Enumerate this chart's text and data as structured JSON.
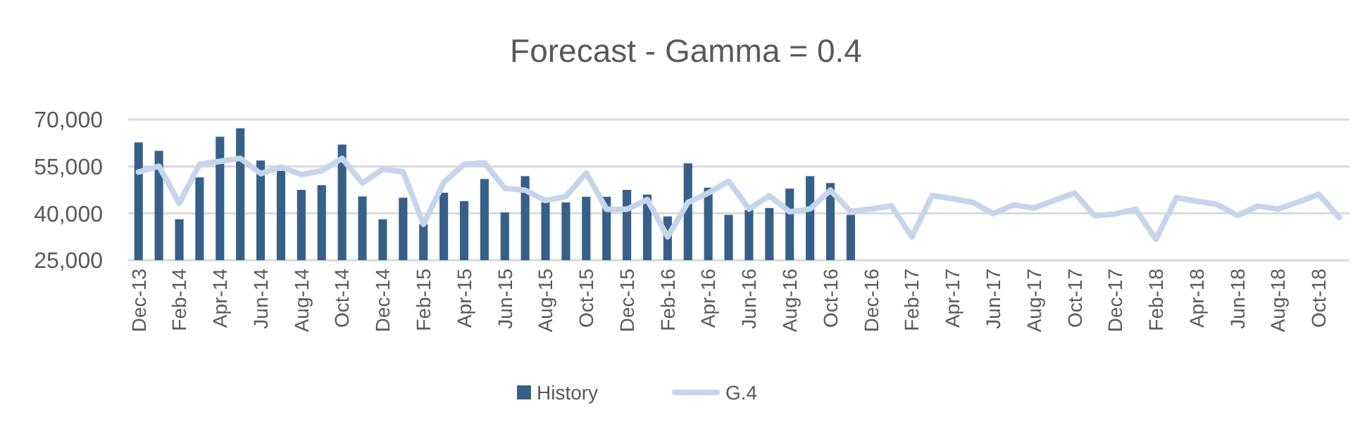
{
  "chart_data": {
    "type": "bar",
    "title": "Forecast - Gamma = 0.4",
    "categories": [
      "Dec-13",
      null,
      "Feb-14",
      null,
      "Apr-14",
      null,
      "Jun-14",
      null,
      "Aug-14",
      null,
      "Oct-14",
      null,
      "Dec-14",
      null,
      "Feb-15",
      null,
      "Apr-15",
      null,
      "Jun-15",
      null,
      "Aug-15",
      null,
      "Oct-15",
      null,
      "Dec-15",
      null,
      "Feb-16",
      null,
      "Apr-16",
      null,
      "Jun-16",
      null,
      "Aug-16",
      null,
      "Oct-16",
      null,
      "Dec-16",
      null,
      "Feb-17",
      null,
      "Apr-17",
      null,
      "Jun-17",
      null,
      "Aug-17",
      null,
      "Oct-17",
      null,
      "Dec-17",
      null,
      "Feb-18",
      null,
      "Apr-18",
      null,
      "Jun-18",
      null,
      "Aug-18",
      null,
      "Oct-18",
      null
    ],
    "series": [
      {
        "name": "History",
        "color": "#376089",
        "values": [
          62700,
          60000,
          38100,
          51500,
          64500,
          67200,
          56900,
          53600,
          47500,
          49000,
          62000,
          45400,
          38100,
          45000,
          36500,
          46600,
          43900,
          51000,
          40300,
          51900,
          43500,
          43500,
          45300,
          45300,
          47500,
          46000,
          39000,
          56000,
          48200,
          39500,
          41100,
          41700,
          47900,
          51900,
          49700,
          39500,
          null,
          null,
          null,
          null,
          null,
          null,
          null,
          null,
          null,
          null,
          null,
          null,
          null,
          null,
          null,
          null,
          null,
          null,
          null,
          null,
          null,
          null,
          null,
          null
        ]
      },
      {
        "name": "G.4",
        "type": "line",
        "color": "#c5d5ec",
        "values": [
          53200,
          55100,
          43200,
          55700,
          56600,
          57600,
          52700,
          54800,
          52400,
          53600,
          57600,
          49700,
          54100,
          53300,
          36500,
          49900,
          55700,
          56100,
          48000,
          47400,
          44100,
          45400,
          52900,
          41300,
          41300,
          44400,
          32500,
          43500,
          46500,
          50300,
          41400,
          45600,
          40500,
          41400,
          47400,
          40600,
          41400,
          42400,
          32500,
          45700,
          44700,
          43500,
          39900,
          42700,
          41700,
          44100,
          46500,
          39200,
          39800,
          41300,
          31700,
          45000,
          43900,
          42900,
          39300,
          42300,
          41400,
          43600,
          46100,
          38700
        ]
      }
    ],
    "ylim": [
      25000,
      70000
    ],
    "yticks": [
      {
        "value": 25000,
        "label": "25,000"
      },
      {
        "value": 40000,
        "label": "40,000"
      },
      {
        "value": 55000,
        "label": "55,000"
      },
      {
        "value": 70000,
        "label": "70,000"
      }
    ],
    "grid": "y",
    "legend": "bottom",
    "marker": "none",
    "line_style": "solid"
  }
}
